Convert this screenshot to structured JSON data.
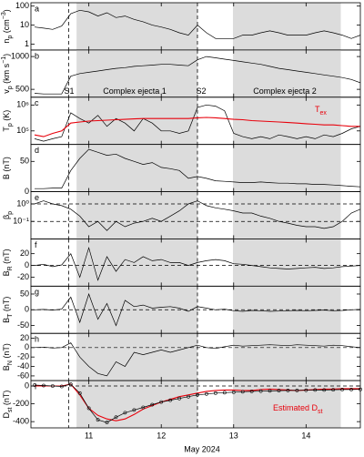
{
  "chart_data": {
    "type": "line",
    "xlabel": "May  2024",
    "xlim": [
      10.2,
      14.75
    ],
    "xticks": [
      11,
      12,
      13,
      14
    ],
    "shade": [
      [
        10.83,
        12.5
      ],
      [
        12.99,
        14.48
      ]
    ],
    "vlines": [
      10.72,
      12.5
    ],
    "x": [
      10.25,
      10.375,
      10.5,
      10.625,
      10.75,
      10.875,
      11,
      11.125,
      11.25,
      11.375,
      11.5,
      11.625,
      11.75,
      11.875,
      12,
      12.125,
      12.25,
      12.375,
      12.5,
      12.625,
      12.75,
      12.875,
      13,
      13.125,
      13.25,
      13.375,
      13.5,
      13.625,
      13.75,
      13.875,
      14,
      14.125,
      14.25,
      14.375,
      14.5,
      14.625,
      14.75
    ],
    "panels": [
      {
        "label": "a",
        "ylabel": [
          {
            "t": "n"
          },
          {
            "t": "p",
            "s": "sub"
          },
          {
            "t": " (cm"
          },
          {
            "t": "−3",
            "s": "sup"
          },
          {
            "t": ")"
          }
        ],
        "log": true,
        "ylim": [
          0.5,
          150
        ],
        "yticks": [
          1,
          10,
          100
        ],
        "series": [
          {
            "color": "#000000",
            "values": [
              8,
              7,
              6,
              9,
              40,
              60,
              50,
              30,
              45,
              25,
              30,
              20,
              15,
              10,
              8,
              6,
              4,
              3,
              10,
              4,
              2,
              2,
              2,
              3,
              3,
              4,
              5,
              4,
              3,
              3,
              3,
              4,
              5,
              4,
              3,
              2,
              3
            ]
          }
        ]
      },
      {
        "label": "b",
        "ylabel": [
          {
            "t": "v"
          },
          {
            "t": "p",
            "s": "sub"
          },
          {
            "t": " (km s"
          },
          {
            "t": "−1",
            "s": "sup"
          },
          {
            "t": ")"
          }
        ],
        "log": false,
        "ylim": [
          380,
          1100
        ],
        "yticks": [
          500,
          1000
        ],
        "annotations": [
          {
            "parts": [
              {
                "t": "S1"
              }
            ]
          },
          {
            "parts": [
              {
                "t": "Complex ejecta 1"
              }
            ]
          },
          {
            "parts": [
              {
                "t": "S2"
              }
            ]
          },
          {
            "parts": [
              {
                "t": "Complex ejecta 2"
              }
            ]
          }
        ],
        "series": [
          {
            "color": "#000000",
            "values": [
              440,
              430,
              430,
              430,
              700,
              740,
              760,
              780,
              800,
              820,
              830,
              850,
              860,
              870,
              880,
              880,
              870,
              860,
              950,
              1000,
              980,
              960,
              940,
              920,
              900,
              880,
              850,
              820,
              800,
              780,
              760,
              740,
              720,
              700,
              680,
              650,
              600
            ]
          }
        ]
      },
      {
        "label": "c",
        "ylabel": [
          {
            "t": "T"
          },
          {
            "t": "p",
            "s": "sub"
          },
          {
            "t": " (K)"
          }
        ],
        "log": true,
        "ylim": [
          30000,
          2000000
        ],
        "yticks": [
          {
            "value": 100000,
            "label": "10⁵"
          },
          {
            "value": 1000000,
            "label": "10⁶"
          }
        ],
        "annotations": [
          {
            "parts": [
              {
                "t": "T"
              },
              {
                "t": "ex",
                "s": "sub"
              }
            ],
            "color": "#e8000b"
          }
        ],
        "series": [
          {
            "color": "#000000",
            "values": [
              50000,
              40000,
              50000,
              60000,
              500000,
              300000,
              200000,
              400000,
              150000,
              300000,
              200000,
              100000,
              300000,
              200000,
              100000,
              100000,
              80000,
              100000,
              800000,
              1000000,
              900000,
              600000,
              80000,
              60000,
              50000,
              60000,
              50000,
              70000,
              60000,
              50000,
              60000,
              50000,
              70000,
              60000,
              80000,
              120000,
              150000
            ]
          },
          {
            "color": "#e8000b",
            "values": [
              70000,
              60000,
              80000,
              100000,
              200000,
              220000,
              240000,
              250000,
              260000,
              270000,
              280000,
              290000,
              300000,
              300000,
              300000,
              300000,
              300000,
              300000,
              320000,
              330000,
              320000,
              300000,
              280000,
              270000,
              250000,
              240000,
              230000,
              220000,
              210000,
              200000,
              190000,
              180000,
              170000,
              170000,
              160000,
              150000,
              150000
            ]
          }
        ]
      },
      {
        "label": "d",
        "ylabel": [
          {
            "t": "B (nT)"
          }
        ],
        "log": false,
        "ylim": [
          0,
          78
        ],
        "yticks": [
          0,
          50
        ],
        "series": [
          {
            "color": "#000000",
            "values": [
              5,
              5,
              6,
              6,
              35,
              55,
              70,
              65,
              60,
              62,
              55,
              50,
              45,
              48,
              40,
              38,
              35,
              22,
              25,
              22,
              18,
              17,
              16,
              15,
              15,
              16,
              15,
              14,
              14,
              13,
              13,
              12,
              12,
              11,
              10,
              9,
              8
            ]
          }
        ]
      },
      {
        "label": "e",
        "ylabel": [
          {
            "t": "β"
          },
          {
            "t": "p",
            "s": "sub"
          }
        ],
        "log": true,
        "ylim": [
          0.01,
          5
        ],
        "yticks": [
          {
            "value": 0.1,
            "label": "10⁻¹"
          },
          {
            "value": 1,
            "label": "10⁰"
          }
        ],
        "hlines": [
          0.1,
          1
        ],
        "series": [
          {
            "color": "#000000",
            "values": [
              1,
              1.5,
              1,
              0.8,
              0.5,
              0.2,
              0.05,
              0.1,
              0.03,
              0.1,
              0.05,
              0.08,
              0.1,
              0.15,
              0.1,
              0.2,
              0.4,
              1,
              1.5,
              0.8,
              0.6,
              0.5,
              0.4,
              0.3,
              0.3,
              0.2,
              0.15,
              0.1,
              0.08,
              0.06,
              0.05,
              0.05,
              0.04,
              0.05,
              0.1,
              0.3,
              0.5
            ]
          }
        ]
      },
      {
        "label": "f",
        "ylabel": [
          {
            "t": "B"
          },
          {
            "t": "R",
            "s": "sub"
          },
          {
            "t": " (nT)"
          }
        ],
        "log": false,
        "ylim": [
          -35,
          45
        ],
        "yticks": [
          -20,
          0,
          20
        ],
        "hlines": [
          0
        ],
        "series": [
          {
            "color": "#000000",
            "values": [
              0,
              2,
              -2,
              1,
              20,
              -20,
              30,
              -25,
              15,
              -10,
              10,
              5,
              15,
              8,
              10,
              5,
              5,
              0,
              5,
              8,
              10,
              8,
              3,
              2,
              0,
              -2,
              -4,
              -5,
              -6,
              -5,
              -4,
              -3,
              -5,
              -4,
              -2,
              -1,
              0
            ]
          }
        ]
      },
      {
        "label": "g",
        "ylabel": [
          {
            "t": "B"
          },
          {
            "t": "T",
            "s": "sub"
          },
          {
            "t": " (nT)"
          }
        ],
        "log": false,
        "ylim": [
          -75,
          75
        ],
        "yticks": [
          -50,
          0,
          50
        ],
        "hlines": [
          0
        ],
        "series": [
          {
            "color": "#000000",
            "values": [
              0,
              1,
              -1,
              2,
              40,
              -40,
              50,
              -30,
              20,
              -50,
              30,
              10,
              15,
              5,
              8,
              10,
              5,
              -5,
              10,
              5,
              0,
              2,
              -3,
              -5,
              -2,
              -3,
              -5,
              -4,
              -3,
              -2,
              -3,
              -2,
              -1,
              -3,
              -2,
              0,
              1
            ]
          }
        ]
      },
      {
        "label": "h",
        "ylabel": [
          {
            "t": "B"
          },
          {
            "t": "N",
            "s": "sub"
          },
          {
            "t": " (nT)"
          }
        ],
        "log": false,
        "ylim": [
          -70,
          30
        ],
        "yticks": [
          -60,
          -40,
          -20,
          0,
          20
        ],
        "hlines": [
          0
        ],
        "series": [
          {
            "color": "#000000",
            "values": [
              0,
              1,
              -1,
              0,
              10,
              -20,
              -40,
              -55,
              -60,
              -30,
              -40,
              -10,
              -15,
              -10,
              -5,
              -10,
              -5,
              0,
              5,
              0,
              -2,
              2,
              5,
              3,
              4,
              5,
              6,
              5,
              4,
              6,
              5,
              4,
              3,
              5,
              4,
              2,
              0
            ]
          }
        ]
      },
      {
        "label": "i",
        "ylabel": [
          {
            "t": "D"
          },
          {
            "t": "st",
            "s": "sub"
          },
          {
            "t": " (nT)"
          }
        ],
        "log": false,
        "ylim": [
          -470,
          60
        ],
        "yticks": [
          -400,
          -200,
          0
        ],
        "hlines": [
          0
        ],
        "annotations": [
          {
            "parts": [
              {
                "t": "Estimated D"
              },
              {
                "t": "st",
                "s": "sub"
              }
            ],
            "color": "#e8000b"
          }
        ],
        "series": [
          {
            "color": "#e8000b",
            "values": [
              0,
              0,
              0,
              0,
              20,
              -100,
              -250,
              -330,
              -370,
              -390,
              -370,
              -320,
              -260,
              -220,
              -180,
              -150,
              -120,
              -100,
              -80,
              -60,
              -50,
              -45,
              -45,
              -50,
              -50,
              -40,
              -35,
              -40,
              -45,
              -50,
              -45,
              -40,
              -35,
              -35,
              -30,
              -30,
              -30
            ]
          },
          {
            "color": "#000000",
            "markers": true,
            "values": [
              10,
              5,
              0,
              -5,
              20,
              -80,
              -250,
              -380,
              -410,
              -350,
              -300,
              -270,
              -240,
              -210,
              -180,
              -160,
              -140,
              -120,
              -100,
              -90,
              -80,
              -75,
              -70,
              -65,
              -60,
              -58,
              -55,
              -52,
              -50,
              -50,
              -48,
              -45,
              -45,
              -42,
              -40,
              -40,
              -38
            ]
          }
        ]
      }
    ]
  }
}
